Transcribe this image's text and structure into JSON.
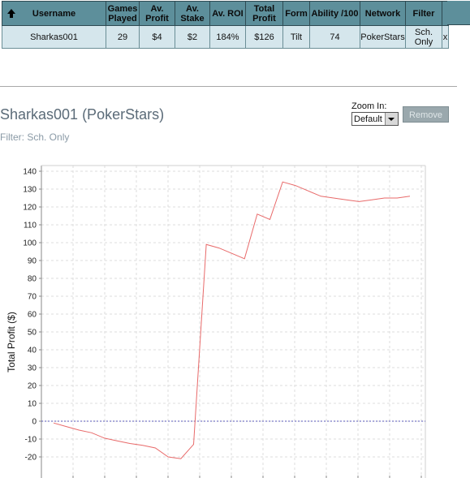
{
  "table": {
    "headers": {
      "username": "Username",
      "games_played": [
        "Games",
        "Played"
      ],
      "av_profit": [
        "Av.",
        "Profit"
      ],
      "av_stake": [
        "Av.",
        "Stake"
      ],
      "av_roi": "Av. ROI",
      "total_profit": [
        "Total",
        "Profit"
      ],
      "form": "Form",
      "ability": "Ability /100",
      "network": "Network",
      "filter": "Filter"
    },
    "row": {
      "username": "Sharkas001",
      "games_played": "29",
      "av_profit": "$4",
      "av_stake": "$2",
      "av_roi": "184%",
      "total_profit": "$126",
      "form": "Tilt",
      "ability": "74",
      "network": "PokerStars",
      "filter": [
        "Sch.",
        "Only"
      ],
      "close": "x"
    }
  },
  "detail": {
    "title": "Sharkas001 (PokerStars)",
    "filter_text": "Filter: Sch. Only",
    "zoom_label": "Zoom In:",
    "zoom_value": "Default",
    "remove_label": "Remove"
  },
  "colors": {
    "header_bg": "#5d8f9b",
    "row_bg": "#d5e6ec",
    "line": "#e86a6a",
    "zero_line": "#5a5ab8"
  },
  "chart_data": {
    "type": "line",
    "ylabel": "Total Profit ($)",
    "xlabel": "",
    "ylim": [
      -25,
      145
    ],
    "yticks": [
      140,
      130,
      120,
      110,
      100,
      90,
      80,
      70,
      60,
      50,
      40,
      30,
      20,
      10,
      0,
      -10,
      -20
    ],
    "xlim": [
      0,
      30
    ],
    "grid": true,
    "series": [
      {
        "x": [
          1,
          2,
          3,
          4,
          5,
          6,
          7,
          8,
          9,
          10,
          11,
          12,
          13,
          14,
          15,
          16,
          17,
          18,
          19,
          20,
          21,
          22,
          23,
          24,
          25,
          26,
          27,
          28,
          29
        ],
        "values": [
          -1,
          -3,
          -5,
          -6.5,
          -9.5,
          -11,
          -12.5,
          -13.5,
          -15,
          -20,
          -21,
          -13,
          99,
          97,
          94,
          91,
          116,
          113,
          134,
          132,
          129,
          126,
          125,
          124,
          123,
          124,
          125,
          125,
          126
        ]
      }
    ]
  }
}
